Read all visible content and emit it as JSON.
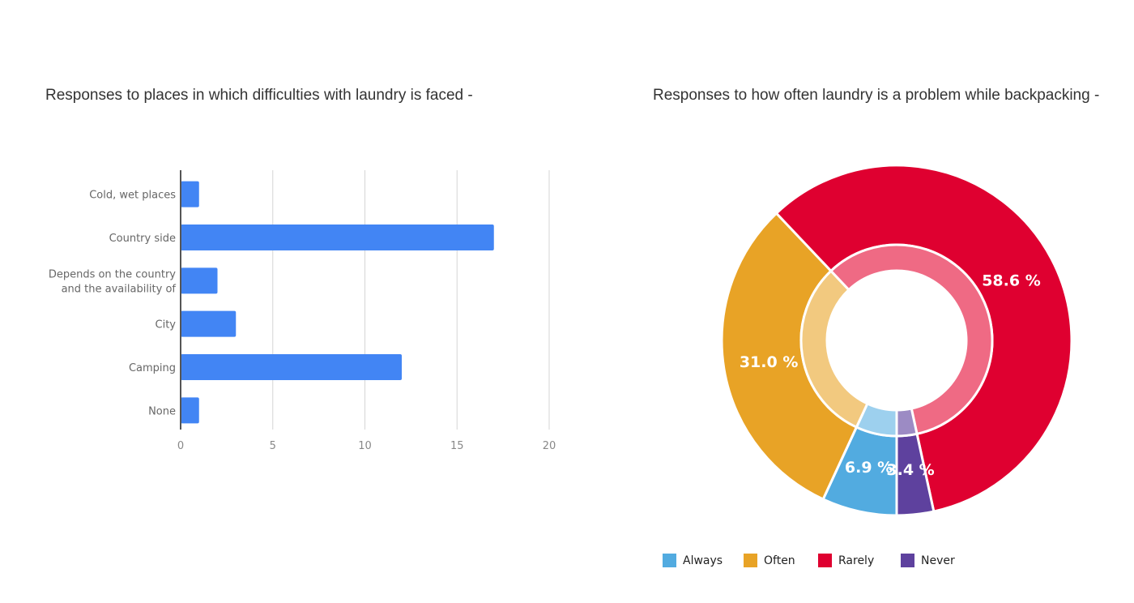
{
  "chart_data": [
    {
      "type": "bar",
      "orientation": "horizontal",
      "title": "Responses to places in which difficulties with laundry is faced -",
      "categories": [
        [
          "Cold, wet places"
        ],
        [
          "Country side"
        ],
        [
          "Depends on the country",
          "and the availability of"
        ],
        [
          "City"
        ],
        [
          "Camping"
        ],
        [
          "None"
        ]
      ],
      "values": [
        1,
        17,
        2,
        3,
        12,
        1
      ],
      "xlim": [
        0,
        20
      ],
      "xticks": [
        "0",
        "5",
        "10",
        "15",
        "20"
      ],
      "xtick_values": [
        0,
        5,
        10,
        15,
        20
      ],
      "grid": true,
      "color": "#4285F4"
    },
    {
      "type": "pie",
      "variant": "donut",
      "title": "Responses to how often laundry is a problem while backpacking -",
      "slices": [
        {
          "label": "Always",
          "value": 6.9,
          "text": "6.9 %",
          "color": "#52ABE0",
          "light": "#9DD0EE"
        },
        {
          "label": "Often",
          "value": 31.0,
          "text": "31.0 %",
          "color": "#E8A326",
          "light": "#F2C97F"
        },
        {
          "label": "Rarely",
          "value": 58.6,
          "text": "58.6 %",
          "color": "#DF0030",
          "light": "#EF6A84"
        },
        {
          "label": "Never",
          "value": 3.4,
          "text": "3.4 %",
          "color": "#5E419E",
          "light": "#9C8BC4"
        }
      ],
      "legend_position": "bottom"
    }
  ]
}
